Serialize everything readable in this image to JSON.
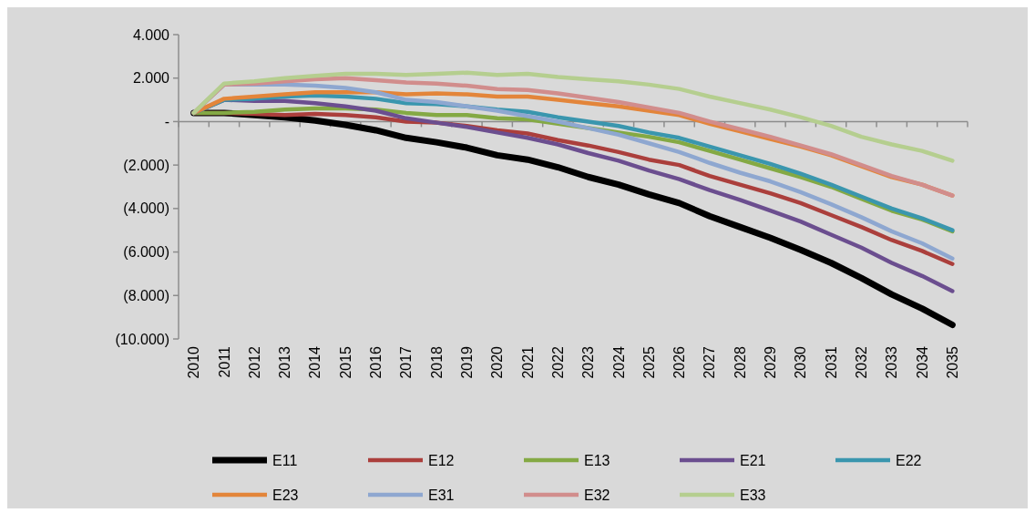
{
  "chart_data": {
    "type": "line",
    "categories": [
      "2010",
      "2011",
      "2012",
      "2013",
      "2014",
      "2015",
      "2016",
      "2017",
      "2018",
      "2019",
      "2020",
      "2021",
      "2022",
      "2023",
      "2024",
      "2025",
      "2026",
      "2027",
      "2028",
      "2029",
      "2030",
      "2031",
      "2032",
      "2033",
      "2034",
      "2035"
    ],
    "series": [
      {
        "name": "E11",
        "color": "#000000",
        "values": [
          400,
          400,
          300,
          200,
          50,
          -150,
          -400,
          -750,
          -950,
          -1200,
          -1550,
          -1750,
          -2100,
          -2550,
          -2900,
          -3350,
          -3750,
          -4350,
          -4850,
          -5350,
          -5900,
          -6500,
          -7200,
          -7950,
          -8600,
          -9350
        ]
      },
      {
        "name": "E12",
        "color": "#ab3f3c",
        "values": [
          400,
          400,
          350,
          300,
          350,
          300,
          200,
          0,
          -50,
          -200,
          -400,
          -550,
          -850,
          -1100,
          -1400,
          -1750,
          -2000,
          -2500,
          -2900,
          -3300,
          -3750,
          -4300,
          -4850,
          -5450,
          -5950,
          -6550
        ]
      },
      {
        "name": "E13",
        "color": "#84a944",
        "values": [
          400,
          400,
          450,
          550,
          600,
          600,
          550,
          400,
          300,
          300,
          150,
          100,
          -100,
          -300,
          -500,
          -700,
          -950,
          -1350,
          -1750,
          -2150,
          -2550,
          -3000,
          -3550,
          -4100,
          -4500,
          -5050
        ]
      },
      {
        "name": "E21",
        "color": "#6b4e8f",
        "values": [
          400,
          1000,
          950,
          950,
          850,
          700,
          500,
          150,
          -50,
          -250,
          -500,
          -750,
          -1050,
          -1450,
          -1800,
          -2250,
          -2650,
          -3150,
          -3600,
          -4100,
          -4600,
          -5200,
          -5800,
          -6500,
          -7100,
          -7800
        ]
      },
      {
        "name": "E22",
        "color": "#3a96ae",
        "values": [
          400,
          1000,
          1050,
          1150,
          1200,
          1150,
          1050,
          850,
          800,
          700,
          550,
          450,
          200,
          0,
          -200,
          -500,
          -750,
          -1150,
          -1550,
          -1950,
          -2400,
          -2900,
          -3450,
          -4000,
          -4450,
          -5000
        ]
      },
      {
        "name": "E23",
        "color": "#e3853a",
        "values": [
          400,
          1050,
          1150,
          1250,
          1350,
          1350,
          1350,
          1250,
          1300,
          1250,
          1150,
          1150,
          1000,
          850,
          700,
          500,
          300,
          -100,
          -450,
          -800,
          -1150,
          -1550,
          -2050,
          -2550,
          -2900,
          -3400
        ]
      },
      {
        "name": "E31",
        "color": "#8ea7d0",
        "values": [
          400,
          1700,
          1700,
          1700,
          1650,
          1550,
          1350,
          1000,
          900,
          700,
          500,
          250,
          0,
          -300,
          -600,
          -1000,
          -1400,
          -1900,
          -2350,
          -2750,
          -3250,
          -3800,
          -4400,
          -5050,
          -5600,
          -6300
        ]
      },
      {
        "name": "E32",
        "color": "#d18d8c",
        "values": [
          400,
          1700,
          1750,
          1850,
          1950,
          2000,
          1900,
          1800,
          1750,
          1650,
          1500,
          1450,
          1300,
          1100,
          900,
          650,
          400,
          0,
          -350,
          -700,
          -1100,
          -1500,
          -2000,
          -2500,
          -2900,
          -3400
        ]
      },
      {
        "name": "E33",
        "color": "#b5ce8f",
        "values": [
          400,
          1750,
          1850,
          2000,
          2100,
          2200,
          2200,
          2150,
          2200,
          2250,
          2150,
          2200,
          2050,
          1950,
          1850,
          1700,
          1500,
          1150,
          850,
          550,
          200,
          -200,
          -700,
          -1050,
          -1350,
          -1800
        ]
      }
    ],
    "ylim": [
      -10000,
      4000
    ],
    "yticks": [
      {
        "value": 4000,
        "label": "4.000"
      },
      {
        "value": 2000,
        "label": "2.000"
      },
      {
        "value": 0,
        "label": "-"
      },
      {
        "value": -2000,
        "label": "(2.000)"
      },
      {
        "value": -4000,
        "label": "(4.000)"
      },
      {
        "value": -6000,
        "label": "(6.000)"
      },
      {
        "value": -8000,
        "label": "(8.000)"
      },
      {
        "value": -10000,
        "label": "(10.000)"
      }
    ],
    "legend": "bottom",
    "marker": "none",
    "line_style": "solid"
  }
}
